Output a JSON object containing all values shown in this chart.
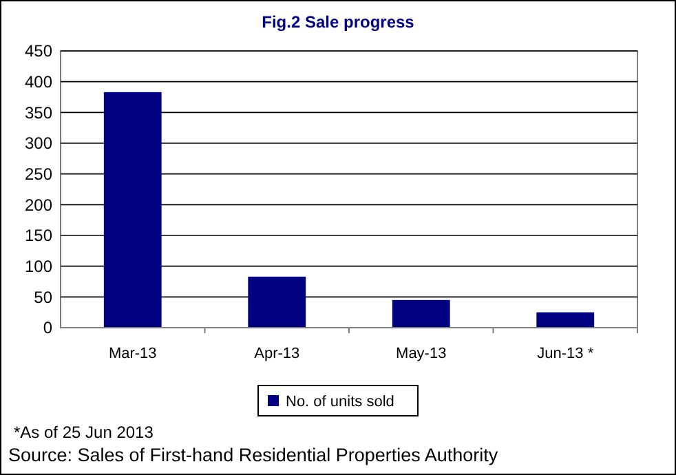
{
  "chart_data": {
    "type": "bar",
    "title": "Fig.2 Sale progress",
    "categories": [
      "Mar-13",
      "Apr-13",
      "May-13",
      "Jun-13 *"
    ],
    "series": [
      {
        "name": "No. of units sold",
        "color": "#000080",
        "values": [
          383,
          83,
          45,
          25
        ]
      }
    ],
    "ylim": [
      0,
      450
    ],
    "yticks": [
      0,
      50,
      100,
      150,
      200,
      250,
      300,
      350,
      400,
      450
    ],
    "grid": "y",
    "legend": "bottom",
    "annotations": [
      "*As of 25 Jun 2013",
      "Source: Sales of First-hand Residential Properties Authority"
    ]
  }
}
